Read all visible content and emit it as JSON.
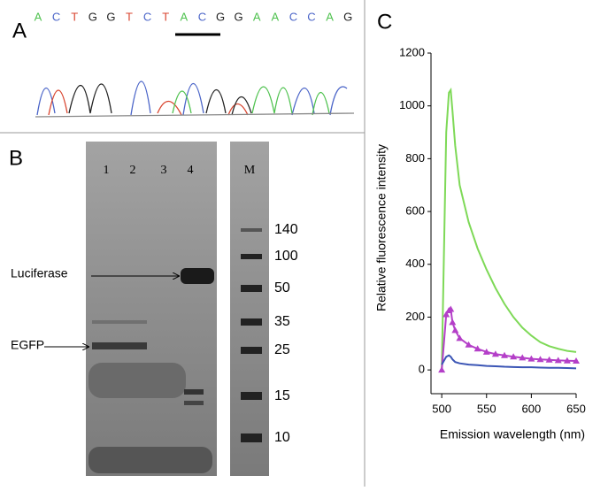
{
  "panel_a": {
    "label": "A",
    "sequence": [
      "A",
      "C",
      "T",
      "G",
      "G",
      "T",
      "C",
      "T",
      "A",
      "C",
      "G",
      "G",
      "A",
      "A",
      "C",
      "C",
      "A",
      "G"
    ],
    "base_colors": {
      "A": "#4fc24f",
      "C": "#4a64c8",
      "T": "#d9452f",
      "G": "#222222"
    }
  },
  "panel_b": {
    "label": "B",
    "lanes": [
      "1",
      "2",
      "3",
      "4"
    ],
    "marker_lane": "M",
    "marker_sizes": [
      140,
      100,
      50,
      35,
      25,
      15,
      10
    ],
    "bands": [
      "Luciferase",
      "EGFP"
    ]
  },
  "chart_data": {
    "type": "line",
    "panel_label": "C",
    "x_label": "Emission wavelength (nm)",
    "y_label": "Relative fluorescence intensity",
    "x": [
      500,
      505,
      508,
      510,
      512,
      515,
      520,
      530,
      540,
      550,
      560,
      570,
      580,
      590,
      600,
      610,
      620,
      630,
      640,
      650
    ],
    "series": [
      {
        "color": "#7ed957",
        "values": [
          0,
          900,
          1050,
          1060,
          980,
          850,
          700,
          560,
          460,
          380,
          310,
          250,
          200,
          160,
          130,
          105,
          90,
          80,
          72,
          68
        ]
      },
      {
        "color": "#b43fc8",
        "marker": "triangle",
        "values": [
          0,
          210,
          225,
          230,
          180,
          150,
          120,
          95,
          80,
          68,
          60,
          55,
          50,
          46,
          42,
          40,
          38,
          36,
          35,
          34
        ]
      },
      {
        "color": "#3b55b5",
        "values": [
          20,
          50,
          55,
          50,
          40,
          30,
          25,
          20,
          18,
          15,
          14,
          12,
          11,
          10,
          10,
          9,
          8,
          8,
          7,
          6
        ]
      }
    ],
    "xlim": [
      488,
      650
    ],
    "xticks": [
      500,
      550,
      600,
      650
    ],
    "ylim": [
      -90,
      1200
    ],
    "yticks": [
      0,
      200,
      400,
      600,
      800,
      1000,
      1200
    ]
  }
}
